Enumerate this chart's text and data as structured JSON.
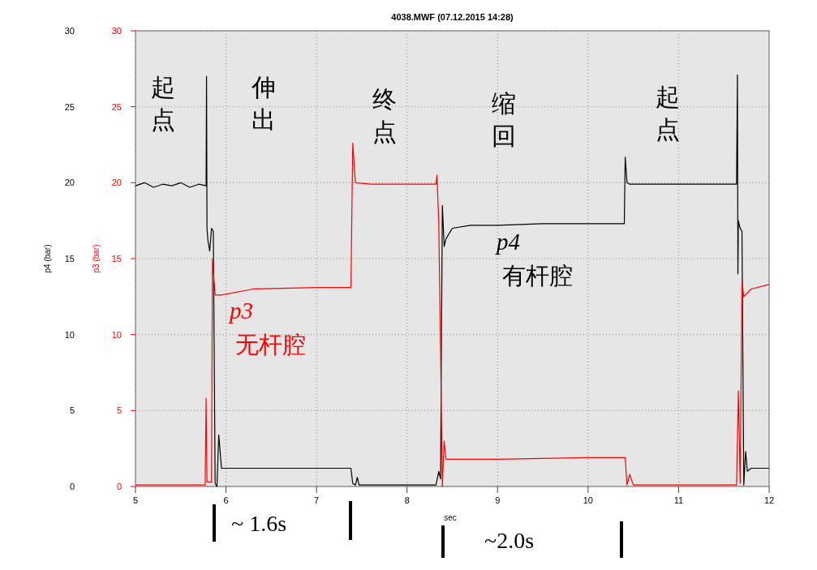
{
  "chart_data": {
    "type": "line",
    "title": "4038.MWF (07.12.2015 14:28)",
    "xlabel": "sec",
    "ylabel": "p4 (bar)",
    "y2label": "p3 (bar)",
    "xlim": [
      5,
      12
    ],
    "xticks": [
      5,
      6,
      7,
      8,
      9,
      10,
      11,
      12
    ],
    "ylim": [
      0,
      30
    ],
    "yticks": [
      0,
      5,
      10,
      15,
      20,
      25,
      30
    ],
    "y2lim": [
      0,
      30
    ],
    "y2ticks": [
      0,
      5,
      10,
      15,
      20,
      25,
      30
    ],
    "grid": true,
    "annotations": [
      "起点",
      "伸出",
      "终点",
      "缩回",
      "起点",
      "~ 1.6s",
      "~2.0s"
    ],
    "series": [
      {
        "name": "p4 有杆腔",
        "color": "#000000",
        "x": [
          5.0,
          5.1,
          5.2,
          5.3,
          5.4,
          5.5,
          5.6,
          5.7,
          5.78,
          5.785,
          5.79,
          5.8,
          5.82,
          5.84,
          5.86,
          5.88,
          5.9,
          5.92,
          5.95,
          6.5,
          7.0,
          7.38,
          7.4,
          7.43,
          7.45,
          7.47,
          7.5,
          8.0,
          8.32,
          8.35,
          8.37,
          8.39,
          8.41,
          8.43,
          8.5,
          8.7,
          9.0,
          9.5,
          10.0,
          10.4,
          10.41,
          10.43,
          10.46,
          10.8,
          11.2,
          11.64,
          11.65,
          11.655,
          11.66,
          11.68,
          11.7,
          11.72,
          11.74,
          11.76,
          11.8,
          12.0
        ],
        "values": [
          19.8,
          20.0,
          19.7,
          19.9,
          19.8,
          20.0,
          19.7,
          19.9,
          19.8,
          27.0,
          17.0,
          16.2,
          15.5,
          17.0,
          16.8,
          0.2,
          0.0,
          3.4,
          1.2,
          1.2,
          1.2,
          1.2,
          0.2,
          0.1,
          0.6,
          0.1,
          0.1,
          0.1,
          0.1,
          1.0,
          0.5,
          18.5,
          15.8,
          16.3,
          17.0,
          17.2,
          17.2,
          17.3,
          17.3,
          17.3,
          21.7,
          20.0,
          19.9,
          19.9,
          19.9,
          19.9,
          27.1,
          14.0,
          17.5,
          17.0,
          16.8,
          0.1,
          2.3,
          1.0,
          1.2,
          1.2
        ]
      },
      {
        "name": "p3 无杆腔",
        "color": "#ff0000",
        "axis": "y2",
        "x": [
          5.0,
          5.5,
          5.77,
          5.78,
          5.79,
          5.84,
          5.85,
          5.88,
          5.95,
          6.3,
          7.0,
          7.38,
          7.4,
          7.43,
          7.6,
          8.0,
          8.32,
          8.33,
          8.35,
          8.37,
          8.39,
          8.41,
          8.43,
          8.45,
          9.0,
          10.0,
          10.41,
          10.43,
          10.46,
          10.5,
          11.0,
          11.64,
          11.66,
          11.68,
          11.7,
          11.72,
          11.8,
          12.0
        ],
        "values": [
          0.1,
          0.1,
          0.1,
          5.8,
          0.3,
          0.3,
          15.0,
          12.6,
          12.6,
          13.0,
          13.1,
          13.1,
          22.6,
          20.0,
          19.9,
          19.9,
          19.9,
          20.5,
          17.5,
          9.0,
          0.0,
          3.0,
          1.8,
          1.8,
          1.8,
          1.9,
          1.9,
          0.1,
          0.8,
          0.1,
          0.1,
          0.1,
          6.3,
          0.2,
          13.5,
          12.5,
          13.0,
          13.3
        ]
      }
    ]
  }
}
